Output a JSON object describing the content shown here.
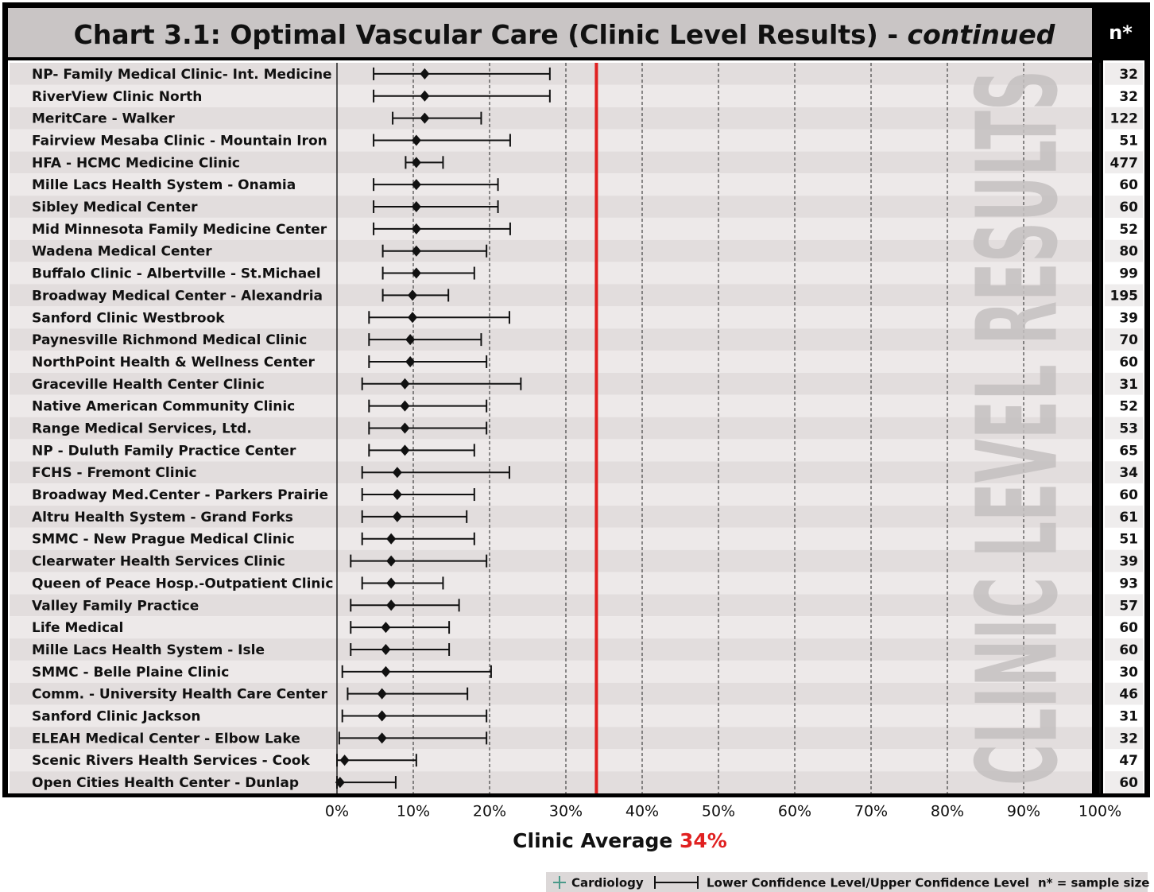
{
  "chart_data": {
    "type": "errorbar",
    "title": "Chart 3.1: Optimal Vascular Care (Clinic Level Results) - ",
    "title_italic": "continued",
    "n_header": "n*",
    "watermark": "CLINIC LEVEL RESULTS",
    "categories": [
      "NP- Family Medical Clinic- Int. Medicine",
      "RiverView Clinic North",
      "MeritCare - Walker",
      "Fairview Mesaba Clinic - Mountain Iron",
      "HFA - HCMC Medicine Clinic",
      "Mille Lacs Health System - Onamia",
      "Sibley Medical Center",
      "Mid Minnesota Family Medicine Center",
      "Wadena Medical Center",
      "Buffalo Clinic - Albertville - St.Michael",
      "Broadway Medical Center - Alexandria",
      "Sanford Clinic Westbrook",
      "Paynesville Richmond Medical Clinic",
      "NorthPoint Health & Wellness Center",
      "Graceville Health Center Clinic",
      "Native American Community Clinic",
      "Range Medical Services, Ltd.",
      "NP - Duluth Family Practice Center",
      "FCHS - Fremont Clinic",
      "Broadway Med.Center - Parkers Prairie",
      "Altru Health System - Grand Forks",
      "SMMC - New Prague Medical Clinic",
      "Clearwater Health Services Clinic",
      "Queen of Peace Hosp.-Outpatient Clinic",
      "Valley Family Practice",
      "Life Medical",
      "Mille Lacs Health System - Isle",
      "SMMC - Belle Plaine Clinic",
      "Comm. - University Health Care Center",
      "Sanford Clinic Jackson",
      "ELEAH Medical Center - Elbow Lake",
      "Scenic Rivers Health Services - Cook",
      "Open Cities Health Center - Dunlap"
    ],
    "values": [
      11.5,
      11.5,
      11.5,
      10.4,
      10.4,
      10.4,
      10.4,
      10.4,
      10.4,
      10.4,
      9.9,
      9.9,
      9.6,
      9.6,
      8.9,
      8.9,
      8.9,
      8.9,
      7.9,
      7.9,
      7.9,
      7.1,
      7.1,
      7.1,
      7.1,
      6.4,
      6.4,
      6.4,
      5.9,
      5.9,
      5.9,
      1.0,
      0.4
    ],
    "lower": [
      4.8,
      4.8,
      7.3,
      4.8,
      9.0,
      4.8,
      4.8,
      4.8,
      6.0,
      6.0,
      6.0,
      4.2,
      4.2,
      4.2,
      3.3,
      4.2,
      4.2,
      4.2,
      3.3,
      3.3,
      3.3,
      3.3,
      1.8,
      3.3,
      1.8,
      1.8,
      1.8,
      0.7,
      1.4,
      0.7,
      0.3,
      0,
      0
    ],
    "upper": [
      27.9,
      27.9,
      18.9,
      22.7,
      13.9,
      21.1,
      21.1,
      22.7,
      19.6,
      18.0,
      14.6,
      22.6,
      18.9,
      19.6,
      24.1,
      19.6,
      19.6,
      18.0,
      22.6,
      18.0,
      17.0,
      18.0,
      19.6,
      13.9,
      16.0,
      14.7,
      14.7,
      20.2,
      17.1,
      19.6,
      19.6,
      10.4,
      7.7
    ],
    "n": [
      32,
      32,
      122,
      51,
      477,
      60,
      60,
      52,
      80,
      99,
      195,
      39,
      70,
      60,
      31,
      52,
      53,
      65,
      34,
      60,
      61,
      51,
      39,
      93,
      57,
      60,
      60,
      30,
      46,
      31,
      32,
      47,
      60
    ],
    "xlim": [
      0,
      100
    ],
    "xticks": [
      {
        "value": 0,
        "label": "0%"
      },
      {
        "value": 10,
        "label": "10%"
      },
      {
        "value": 20,
        "label": "20%"
      },
      {
        "value": 30,
        "label": "30%"
      },
      {
        "value": 40,
        "label": "40%"
      },
      {
        "value": 50,
        "label": "50%"
      },
      {
        "value": 60,
        "label": "60%"
      },
      {
        "value": 70,
        "label": "70%"
      },
      {
        "value": 80,
        "label": "80%"
      },
      {
        "value": 90,
        "label": "90%"
      },
      {
        "value": 100,
        "label": "100%"
      }
    ],
    "average_label": "Clinic Average ",
    "average": 34,
    "average_value_label": "34%",
    "average_color": "#e02020",
    "legend": [
      "Cardiology",
      "Lower Confidence Level/Upper Confidence Level",
      "n* = sample size"
    ]
  }
}
